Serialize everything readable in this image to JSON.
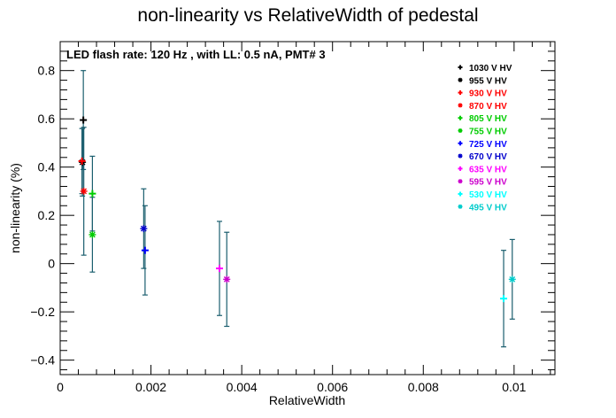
{
  "chart_data": {
    "type": "scatter",
    "title": "non-linearity vs RelativeWidth of pedestal",
    "annotation": "LED flash rate: 120 Hz , with LL: 0.5 nA, PMT# 3",
    "xlabel": "RelativeWidth",
    "ylabel": "non-linearity (%)",
    "xlim": [
      0,
      0.0109
    ],
    "ylim": [
      -0.46,
      0.92
    ],
    "x_ticks": [
      0,
      0.002,
      0.004,
      0.006,
      0.008,
      0.01
    ],
    "x_tick_labels": [
      "0",
      "0.002",
      "0.004",
      "0.006",
      "0.008",
      "0.01"
    ],
    "y_ticks": [
      -0.4,
      -0.2,
      0,
      0.2,
      0.4,
      0.6,
      0.8
    ],
    "y_tick_labels": [
      "−0.4",
      "−0.2",
      "0",
      "0.2",
      "0.4",
      "0.6",
      "0.8"
    ],
    "errorbar_color": "#1a5e6e",
    "legend_position": "top-right",
    "series": [
      {
        "name": "1030 V HV",
        "color": "#000000",
        "marker": "plus",
        "x": 0.00051,
        "y": 0.595,
        "err": 0.205
      },
      {
        "name": "955 V HV",
        "color": "#000000",
        "marker": "star",
        "x": 0.00049,
        "y": 0.42,
        "err": 0.14
      },
      {
        "name": "930 V HV",
        "color": "#ff0000",
        "marker": "plus",
        "x": 0.00048,
        "y": 0.425,
        "err": 0.135
      },
      {
        "name": "870 V HV",
        "color": "#ff0000",
        "marker": "star",
        "x": 0.00052,
        "y": 0.3,
        "err": 0.265
      },
      {
        "name": "805 V HV",
        "color": "#00cc00",
        "marker": "plus",
        "x": 0.00071,
        "y": 0.29,
        "err": 0.155
      },
      {
        "name": "755 V HV",
        "color": "#00cc00",
        "marker": "star",
        "x": 0.00071,
        "y": 0.12,
        "err": 0.155
      },
      {
        "name": "725 V HV",
        "color": "#0000ff",
        "marker": "plus",
        "x": 0.00187,
        "y": 0.055,
        "err": 0.185
      },
      {
        "name": "670 V HV",
        "color": "#0000cc",
        "marker": "star",
        "x": 0.00184,
        "y": 0.145,
        "err": 0.165
      },
      {
        "name": "635 V HV",
        "color": "#ff00ff",
        "marker": "plus",
        "x": 0.00351,
        "y": -0.02,
        "err": 0.195
      },
      {
        "name": "595 V HV",
        "color": "#cc00cc",
        "marker": "star",
        "x": 0.00367,
        "y": -0.065,
        "err": 0.195
      },
      {
        "name": "530 V HV",
        "color": "#00ffff",
        "marker": "plus",
        "x": 0.00977,
        "y": -0.145,
        "err": 0.2
      },
      {
        "name": "495 V HV",
        "color": "#00cccc",
        "marker": "star",
        "x": 0.00996,
        "y": -0.065,
        "err": 0.165
      }
    ]
  }
}
